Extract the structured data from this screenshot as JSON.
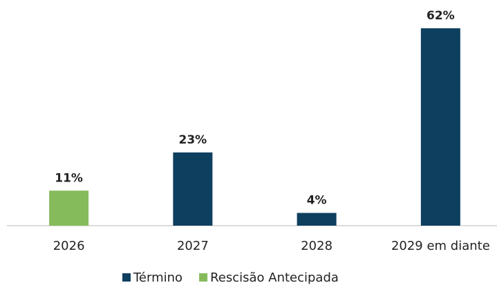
{
  "chart_data": {
    "type": "bar",
    "categories": [
      "2026",
      "2027",
      "2028",
      "2029 em diante"
    ],
    "series": [
      {
        "name": "Término",
        "color": "#0e3f5f",
        "values": [
          null,
          23,
          4,
          62
        ],
        "value_labels": [
          null,
          "23%",
          "4%",
          "62%"
        ]
      },
      {
        "name": "Rescisão Antecipada",
        "color": "#86bb5b",
        "values": [
          11,
          null,
          null,
          null
        ],
        "value_labels": [
          "11%",
          null,
          null,
          null
        ]
      }
    ],
    "grid": false,
    "legend": "bottom"
  }
}
